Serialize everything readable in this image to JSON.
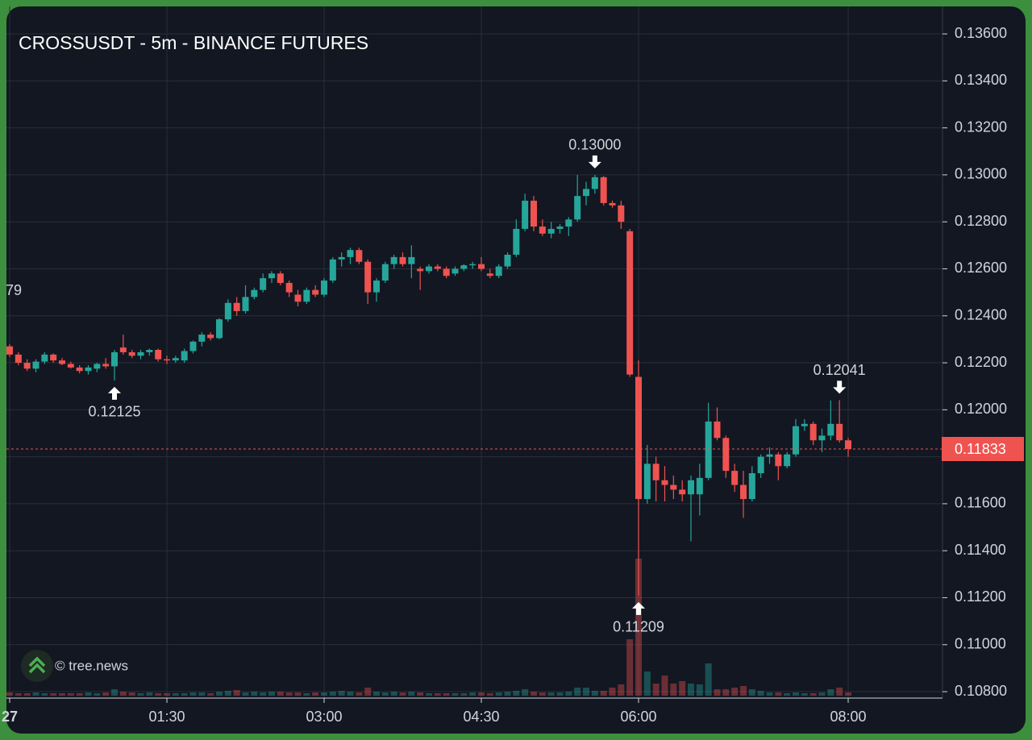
{
  "chart_data": {
    "type": "candlestick",
    "title": "CROSSUSDT - 5m - BINANCE FUTURES",
    "watermark": "© tree.news",
    "up_color": "#26a69a",
    "down_color": "#ef5350",
    "ylim": [
      0.10783,
      0.1371
    ],
    "yticks": [
      {
        "value": 0.136,
        "label": "0.13600"
      },
      {
        "value": 0.134,
        "label": "0.13400"
      },
      {
        "value": 0.132,
        "label": "0.13200"
      },
      {
        "value": 0.13,
        "label": "0.13000"
      },
      {
        "value": 0.128,
        "label": "0.12800"
      },
      {
        "value": 0.126,
        "label": "0.12600"
      },
      {
        "value": 0.124,
        "label": "0.12400"
      },
      {
        "value": 0.122,
        "label": "0.12200"
      },
      {
        "value": 0.12,
        "label": "0.12000"
      },
      {
        "value": 0.118,
        "label": "0.11800"
      },
      {
        "value": 0.116,
        "label": "0.11600"
      },
      {
        "value": 0.114,
        "label": "0.11400"
      },
      {
        "value": 0.112,
        "label": "0.11200"
      },
      {
        "value": 0.11,
        "label": "0.11000"
      },
      {
        "value": 0.108,
        "label": "0.10800"
      }
    ],
    "xticks": [
      {
        "value": 0,
        "label": "27"
      },
      {
        "value": 18,
        "label": "01:30"
      },
      {
        "value": 36,
        "label": "03:00"
      },
      {
        "value": 54,
        "label": "04:30"
      },
      {
        "value": 72,
        "label": "06:00"
      },
      {
        "value": 96,
        "label": "08:00"
      }
    ],
    "grid": true,
    "last_price": {
      "value": 0.11833,
      "label": "0.11833"
    },
    "cropped_label": "79",
    "annotations": [
      {
        "index": 12,
        "value": 0.12125,
        "label": "0.12125",
        "position": "below"
      },
      {
        "index": 67,
        "value": 0.13,
        "label": "0.13000",
        "position": "above"
      },
      {
        "index": 72,
        "value": 0.11209,
        "label": "0.11209",
        "position": "below"
      },
      {
        "index": 95,
        "value": 0.12041,
        "label": "0.12041",
        "position": "above"
      }
    ],
    "candles": [
      [
        0.1227,
        0.1228,
        0.12225,
        0.12235
      ],
      [
        0.12235,
        0.12245,
        0.1219,
        0.122
      ],
      [
        0.122,
        0.12215,
        0.12165,
        0.12175
      ],
      [
        0.12175,
        0.12215,
        0.1216,
        0.12205
      ],
      [
        0.12205,
        0.12245,
        0.12195,
        0.12235
      ],
      [
        0.12235,
        0.1224,
        0.122,
        0.1221
      ],
      [
        0.1221,
        0.1222,
        0.1219,
        0.12195
      ],
      [
        0.12195,
        0.12205,
        0.12175,
        0.1218
      ],
      [
        0.1218,
        0.1219,
        0.12155,
        0.12165
      ],
      [
        0.12165,
        0.1219,
        0.1215,
        0.1218
      ],
      [
        0.12175,
        0.122,
        0.1216,
        0.12195
      ],
      [
        0.12195,
        0.1222,
        0.12175,
        0.12185
      ],
      [
        0.12185,
        0.12255,
        0.12125,
        0.12245
      ],
      [
        0.12265,
        0.1232,
        0.12235,
        0.12245
      ],
      [
        0.12245,
        0.12255,
        0.1222,
        0.1223
      ],
      [
        0.1223,
        0.12255,
        0.12215,
        0.12245
      ],
      [
        0.12245,
        0.1226,
        0.1223,
        0.12255
      ],
      [
        0.12255,
        0.1226,
        0.12205,
        0.12215
      ],
      [
        0.12215,
        0.1223,
        0.12195,
        0.1221
      ],
      [
        0.1221,
        0.1223,
        0.122,
        0.1222
      ],
      [
        0.1221,
        0.1226,
        0.122,
        0.1225
      ],
      [
        0.1225,
        0.12295,
        0.1224,
        0.1229
      ],
      [
        0.1229,
        0.1233,
        0.1227,
        0.1232
      ],
      [
        0.1232,
        0.1233,
        0.12295,
        0.12305
      ],
      [
        0.12305,
        0.1239,
        0.123,
        0.12385
      ],
      [
        0.12385,
        0.1247,
        0.12375,
        0.12455
      ],
      [
        0.12455,
        0.1248,
        0.124,
        0.1242
      ],
      [
        0.1242,
        0.1253,
        0.1241,
        0.1248
      ],
      [
        0.1248,
        0.1252,
        0.1247,
        0.1251
      ],
      [
        0.1251,
        0.1258,
        0.125,
        0.1256
      ],
      [
        0.1256,
        0.1259,
        0.1254,
        0.1258
      ],
      [
        0.1258,
        0.1259,
        0.1253,
        0.1254
      ],
      [
        0.1254,
        0.1255,
        0.1248,
        0.125
      ],
      [
        0.1249,
        0.1251,
        0.1244,
        0.1246
      ],
      [
        0.1246,
        0.1252,
        0.1245,
        0.1251
      ],
      [
        0.1251,
        0.1253,
        0.1248,
        0.1249
      ],
      [
        0.1249,
        0.1256,
        0.1248,
        0.1255
      ],
      [
        0.1255,
        0.1265,
        0.1254,
        0.1264
      ],
      [
        0.1264,
        0.1267,
        0.1261,
        0.1265
      ],
      [
        0.1265,
        0.1269,
        0.1262,
        0.1268
      ],
      [
        0.1268,
        0.1269,
        0.1262,
        0.1263
      ],
      [
        0.1263,
        0.1264,
        0.1245,
        0.125
      ],
      [
        0.125,
        0.1256,
        0.1246,
        0.1255
      ],
      [
        0.1255,
        0.1263,
        0.1254,
        0.1262
      ],
      [
        0.1262,
        0.1266,
        0.126,
        0.1265
      ],
      [
        0.1265,
        0.1267,
        0.1261,
        0.1262
      ],
      [
        0.1262,
        0.127,
        0.1256,
        0.1265
      ],
      [
        0.126,
        0.1261,
        0.1251,
        0.1259
      ],
      [
        0.1259,
        0.1262,
        0.1258,
        0.1261
      ],
      [
        0.1261,
        0.1262,
        0.1259,
        0.126
      ],
      [
        0.126,
        0.1261,
        0.1256,
        0.1257
      ],
      [
        0.1258,
        0.1261,
        0.1257,
        0.126
      ],
      [
        0.126,
        0.1262,
        0.1259,
        0.12615
      ],
      [
        0.12615,
        0.1263,
        0.126,
        0.1262
      ],
      [
        0.1262,
        0.1265,
        0.1259,
        0.126
      ],
      [
        0.1258,
        0.126,
        0.1256,
        0.1257
      ],
      [
        0.1257,
        0.1262,
        0.1256,
        0.1261
      ],
      [
        0.1261,
        0.1267,
        0.126,
        0.1266
      ],
      [
        0.1266,
        0.1281,
        0.1265,
        0.1277
      ],
      [
        0.1277,
        0.1292,
        0.1276,
        0.1289
      ],
      [
        0.1289,
        0.1291,
        0.1276,
        0.1278
      ],
      [
        0.1278,
        0.1281,
        0.1274,
        0.1275
      ],
      [
        0.1275,
        0.128,
        0.1273,
        0.1277
      ],
      [
        0.1277,
        0.1279,
        0.1275,
        0.1278
      ],
      [
        0.1278,
        0.1282,
        0.1274,
        0.1281
      ],
      [
        0.1281,
        0.13,
        0.128,
        0.1291
      ],
      [
        0.1291,
        0.1297,
        0.1287,
        0.1294
      ],
      [
        0.1294,
        0.13,
        0.1292,
        0.1299
      ],
      [
        0.1299,
        0.12995,
        0.1287,
        0.1288
      ],
      [
        0.1288,
        0.1289,
        0.1286,
        0.1287
      ],
      [
        0.1287,
        0.1289,
        0.1277,
        0.128
      ],
      [
        0.1276,
        0.1277,
        0.1214,
        0.1215
      ],
      [
        0.1214,
        0.1221,
        0.11209,
        0.1162
      ],
      [
        0.1162,
        0.1185,
        0.116,
        0.1177
      ],
      [
        0.1177,
        0.118,
        0.1161,
        0.117
      ],
      [
        0.117,
        0.1176,
        0.1161,
        0.1168
      ],
      [
        0.1168,
        0.1172,
        0.1162,
        0.1166
      ],
      [
        0.1166,
        0.117,
        0.1161,
        0.1164
      ],
      [
        0.1164,
        0.1172,
        0.1144,
        0.117
      ],
      [
        0.1164,
        0.1177,
        0.1155,
        0.1171
      ],
      [
        0.1171,
        0.1203,
        0.117,
        0.1195
      ],
      [
        0.1195,
        0.1201,
        0.1187,
        0.1188
      ],
      [
        0.1188,
        0.1189,
        0.1171,
        0.1174
      ],
      [
        0.1174,
        0.1177,
        0.1165,
        0.1168
      ],
      [
        0.1168,
        0.1174,
        0.1154,
        0.1162
      ],
      [
        0.1162,
        0.1176,
        0.1161,
        0.1173
      ],
      [
        0.1173,
        0.1181,
        0.1171,
        0.118
      ],
      [
        0.118,
        0.1184,
        0.1177,
        0.1181
      ],
      [
        0.1181,
        0.1182,
        0.117,
        0.1176
      ],
      [
        0.1176,
        0.1182,
        0.1175,
        0.1181
      ],
      [
        0.1181,
        0.1196,
        0.118,
        0.1193
      ],
      [
        0.1193,
        0.1196,
        0.1191,
        0.1194
      ],
      [
        0.1194,
        0.1195,
        0.1185,
        0.1187
      ],
      [
        0.1187,
        0.1192,
        0.1182,
        0.1189
      ],
      [
        0.1189,
        0.1204,
        0.1187,
        0.1194
      ],
      [
        0.1194,
        0.12041,
        0.1186,
        0.1187
      ],
      [
        0.1187,
        0.1188,
        0.118,
        0.11833
      ]
    ],
    "volume": [
      4,
      3,
      3,
      4,
      3,
      3,
      3,
      3,
      3,
      4,
      3,
      4,
      8,
      5,
      4,
      3,
      4,
      3,
      3,
      3,
      3,
      4,
      4,
      3,
      5,
      6,
      7,
      4,
      5,
      4,
      5,
      5,
      4,
      4,
      3,
      4,
      4,
      5,
      6,
      5,
      4,
      10,
      5,
      4,
      5,
      4,
      5,
      4,
      3,
      3,
      3,
      3,
      3,
      4,
      4,
      3,
      4,
      5,
      6,
      8,
      5,
      4,
      4,
      4,
      5,
      10,
      10,
      6,
      6,
      10,
      14,
      70,
      170,
      30,
      15,
      25,
      15,
      18,
      15,
      14,
      40,
      8,
      8,
      10,
      12,
      8,
      6,
      4,
      4,
      3,
      4,
      3,
      3,
      4,
      8,
      10,
      4
    ]
  }
}
